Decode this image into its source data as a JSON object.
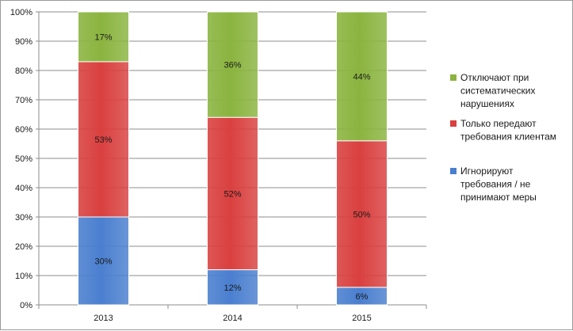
{
  "chart_data": {
    "type": "bar",
    "stacked": true,
    "percent_stacked": true,
    "categories": [
      "2013",
      "2014",
      "2015"
    ],
    "series": [
      {
        "name": "Игнорируют требования / не принимают меры",
        "values": [
          30,
          12,
          6
        ],
        "color": "#4a7fcf"
      },
      {
        "name": "Только передают требования клиентам",
        "values": [
          53,
          52,
          50
        ],
        "color": "#d9403f"
      },
      {
        "name": "Отключают при систематических нарушениях",
        "values": [
          17,
          36,
          44
        ],
        "color": "#8ab43f"
      }
    ],
    "legend_lines": [
      [
        "Отключают при",
        "систематических",
        "нарушениях"
      ],
      [
        "Только передают",
        "требования клиентам"
      ],
      [
        "Игнорируют",
        "требования / не",
        "принимают меры"
      ]
    ],
    "y_ticks": [
      "0%",
      "10%",
      "20%",
      "30%",
      "40%",
      "50%",
      "60%",
      "70%",
      "80%",
      "90%",
      "100%"
    ],
    "ylim": [
      0,
      100
    ],
    "y_unit": "%",
    "grid": true,
    "legend": "right"
  }
}
